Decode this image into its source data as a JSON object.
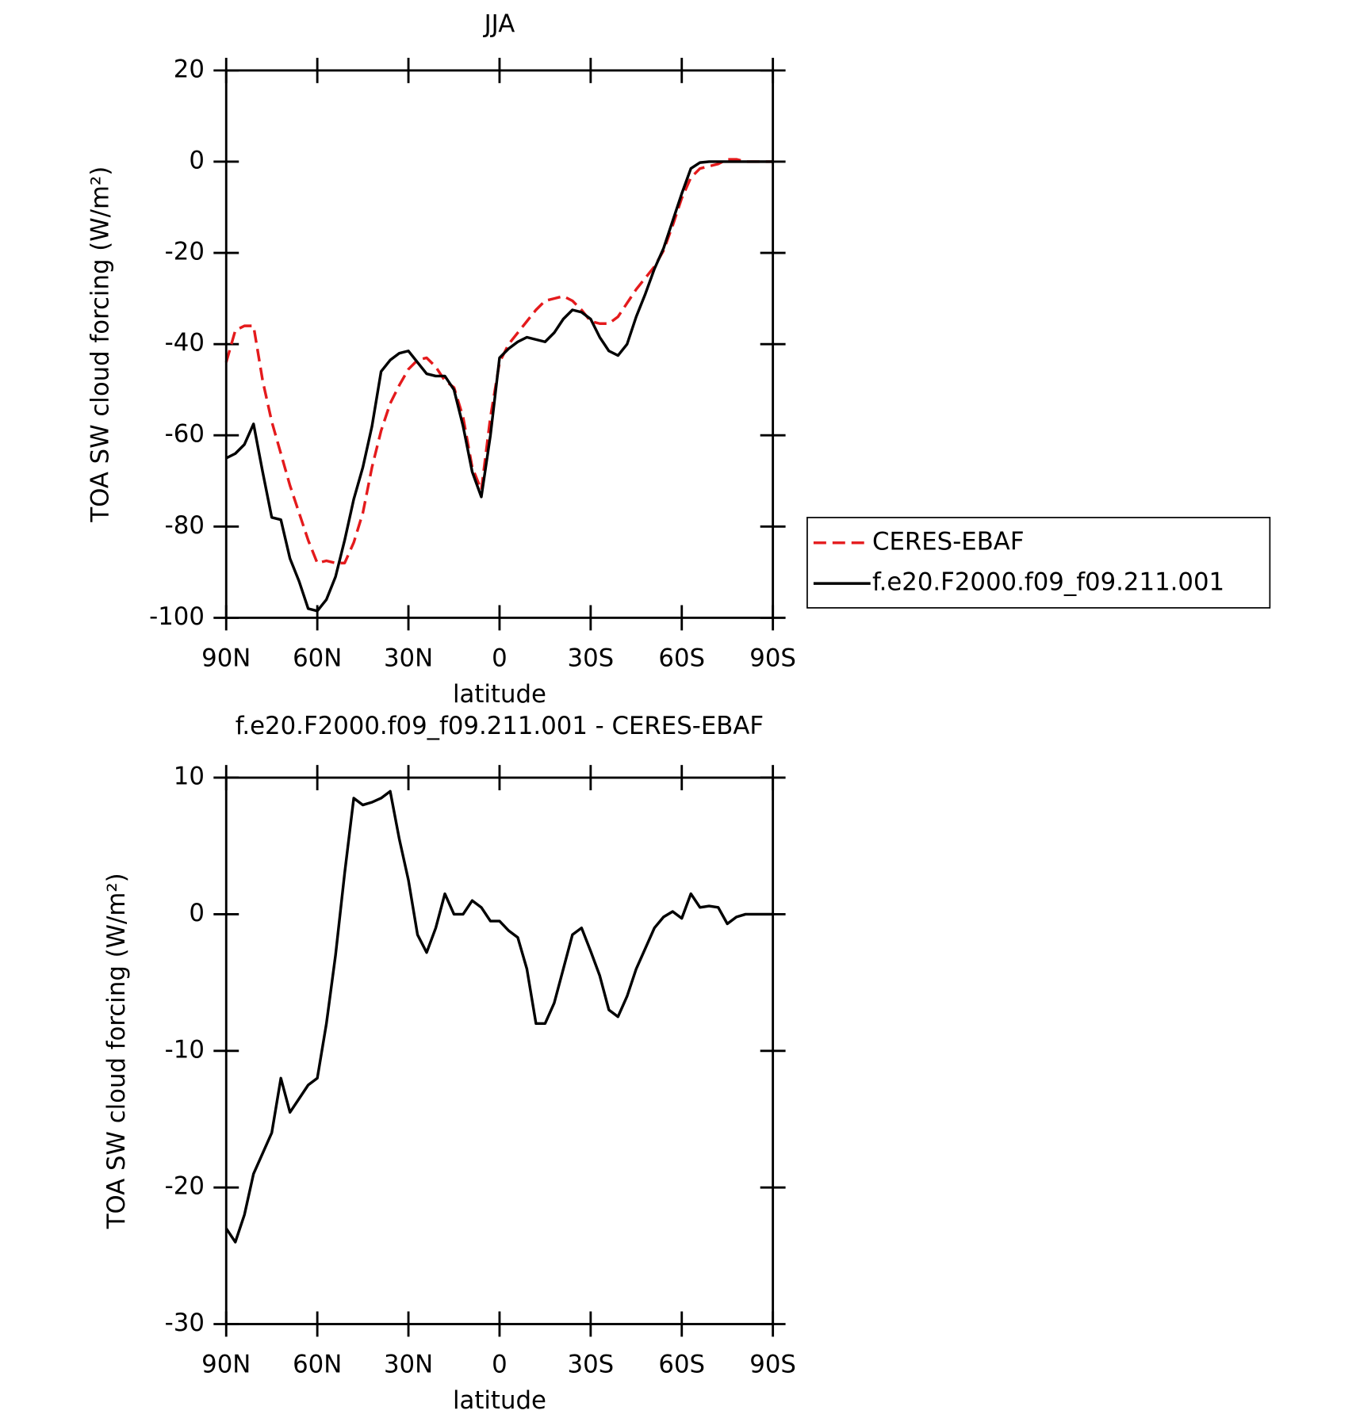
{
  "chart_data": [
    {
      "type": "line",
      "title": "JJA",
      "xlabel": "latitude",
      "ylabel": "TOA SW cloud forcing (W/m²)",
      "xlim": [
        90,
        -90
      ],
      "xticks": [
        {
          "value": 90,
          "label": "90N"
        },
        {
          "value": 60,
          "label": "60N"
        },
        {
          "value": 30,
          "label": "30N"
        },
        0,
        {
          "value": -30,
          "label": "30S"
        },
        {
          "value": -60,
          "label": "60S"
        },
        {
          "value": -90,
          "label": "90S"
        }
      ],
      "ylim": [
        -100,
        20
      ],
      "yticks": [
        -100,
        -80,
        -60,
        -40,
        -20,
        0,
        20
      ],
      "x": [
        90,
        87,
        84,
        81,
        78,
        75,
        72,
        69,
        66,
        63,
        60,
        57,
        54,
        51,
        48,
        45,
        42,
        39,
        36,
        33,
        30,
        27,
        24,
        21,
        18,
        15,
        12,
        9,
        6,
        3,
        0,
        -3,
        -6,
        -9,
        -12,
        -15,
        -18,
        -21,
        -24,
        -27,
        -30,
        -33,
        -36,
        -39,
        -42,
        -45,
        -48,
        -51,
        -54,
        -57,
        -60,
        -63,
        -66,
        -69,
        -72,
        -75,
        -78,
        -81,
        -84,
        -87,
        -90
      ],
      "legend": "right",
      "series": [
        {
          "name": "CERES-EBAF",
          "color": "#e41a1c",
          "line_style": "dashed",
          "values": [
            -44,
            -37,
            -36,
            -36,
            -48,
            -57,
            -64,
            -71,
            -77,
            -83,
            -88,
            -87.5,
            -88,
            -88,
            -83.5,
            -77,
            -67,
            -59,
            -53,
            -49,
            -45.5,
            -43.5,
            -43,
            -45,
            -48,
            -49.5,
            -56,
            -67,
            -72,
            -56,
            -44,
            -40,
            -37.5,
            -35,
            -32.5,
            -30.5,
            -30,
            -29.5,
            -30.5,
            -32.5,
            -35,
            -35.5,
            -35.5,
            -34,
            -31,
            -28,
            -25.5,
            -23,
            -19.5,
            -14,
            -8,
            -3.5,
            -1.5,
            -1,
            -0.5,
            0.5,
            0.5,
            0,
            0,
            0,
            0
          ]
        },
        {
          "name": "f.e20.F2000.f09_f09.211.001",
          "color": "#000000",
          "line_style": "solid",
          "values": [
            -65,
            -64,
            -62,
            -57.5,
            -68,
            -78,
            -78.5,
            -87,
            -92,
            -98,
            -98.5,
            -96,
            -91,
            -83,
            -74,
            -67,
            -58,
            -46,
            -43.5,
            -42,
            -41.5,
            -44,
            -46.5,
            -47,
            -47,
            -50,
            -58,
            -68,
            -73.5,
            -60,
            -43,
            -41,
            -39.5,
            -38.5,
            -39,
            -39.5,
            -37.5,
            -34.5,
            -32.5,
            -33,
            -34.5,
            -38.5,
            -41.5,
            -42.5,
            -40,
            -34,
            -29,
            -23.5,
            -19,
            -13,
            -7,
            -1.5,
            -0.2,
            0,
            0,
            0,
            0,
            0,
            0,
            0,
            0
          ]
        }
      ]
    },
    {
      "type": "line",
      "title": "f.e20.F2000.f09_f09.211.001 - CERES-EBAF",
      "xlabel": "latitude",
      "ylabel": "TOA SW cloud forcing (W/m²)",
      "xlim": [
        90,
        -90
      ],
      "xticks": [
        {
          "value": 90,
          "label": "90N"
        },
        {
          "value": 60,
          "label": "60N"
        },
        {
          "value": 30,
          "label": "30N"
        },
        0,
        {
          "value": -30,
          "label": "30S"
        },
        {
          "value": -60,
          "label": "60S"
        },
        {
          "value": -90,
          "label": "90S"
        }
      ],
      "ylim": [
        -30,
        10
      ],
      "yticks": [
        -30,
        -20,
        -10,
        0,
        10
      ],
      "x": [
        90,
        87,
        84,
        81,
        78,
        75,
        72,
        69,
        66,
        63,
        60,
        57,
        54,
        51,
        48,
        45,
        42,
        39,
        36,
        33,
        30,
        27,
        24,
        21,
        18,
        15,
        12,
        9,
        6,
        3,
        0,
        -3,
        -6,
        -9,
        -12,
        -15,
        -18,
        -21,
        -24,
        -27,
        -30,
        -33,
        -36,
        -39,
        -42,
        -45,
        -48,
        -51,
        -54,
        -57,
        -60,
        -63,
        -66,
        -69,
        -72,
        -75,
        -78,
        -81,
        -84,
        -87,
        -90
      ],
      "color": "#000000",
      "values": [
        -23,
        -24,
        -22,
        -19,
        -17.5,
        -16,
        -12,
        -14.5,
        -13.5,
        -12.5,
        -12,
        -8,
        -3,
        3,
        8.5,
        8,
        8.2,
        8.5,
        9,
        5.5,
        2.5,
        -1.5,
        -2.8,
        -1,
        1.5,
        0,
        0,
        1,
        0.5,
        -0.5,
        -0.5,
        -1.2,
        -1.7,
        -4,
        -8,
        -8,
        -6.5,
        -4,
        -1.5,
        -1,
        -2.7,
        -4.5,
        -7,
        -7.5,
        -6,
        -4,
        -2.5,
        -1,
        -0.2,
        0.2,
        -0.3,
        1.5,
        0.5,
        0.6,
        0.5,
        -0.7,
        -0.2,
        0,
        0,
        0,
        0
      ]
    }
  ]
}
